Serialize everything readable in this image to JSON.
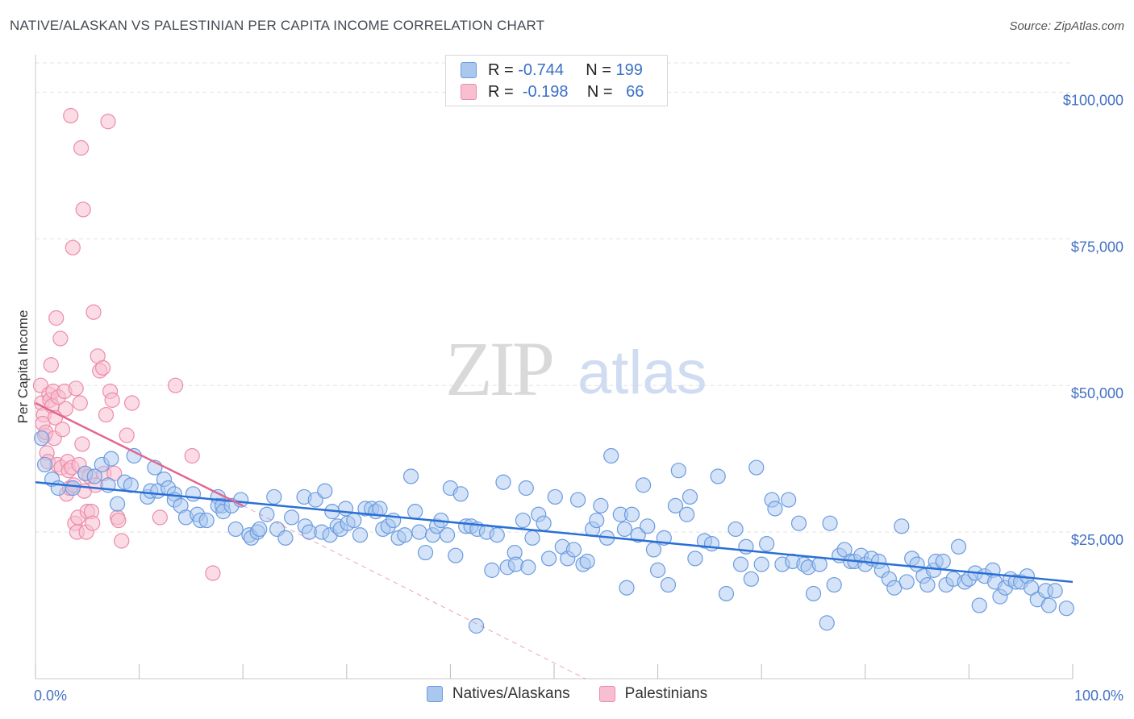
{
  "title": "NATIVE/ALASKAN VS PALESTINIAN PER CAPITA INCOME CORRELATION CHART",
  "source": "Source: ZipAtlas.com",
  "watermark": {
    "zip": "ZIP",
    "atlas": "atlas"
  },
  "legend": {
    "rows": [
      {
        "r_label": "R =",
        "r_value": "-0.744",
        "n_label": "N =",
        "n_value": "199"
      },
      {
        "r_label": "R =",
        "r_value": "-0.198",
        "n_label": "N =",
        "n_value": "66"
      }
    ]
  },
  "colors": {
    "blue_fill": "#aac7ef",
    "blue_stroke": "#6a9be0",
    "blue_line": "#2a6fd6",
    "pink_fill": "#f7bfd0",
    "pink_stroke": "#ec8bab",
    "pink_line": "#e26691",
    "grid": "#e3e3e3",
    "tick_label": "#4472c4"
  },
  "chart_data": {
    "type": "scatter",
    "title": "NATIVE/ALASKAN VS PALESTINIAN PER CAPITA INCOME CORRELATION CHART",
    "xlabel": "",
    "ylabel": "Per Capita Income",
    "xlim": [
      0,
      100
    ],
    "ylim": [
      0,
      105000
    ],
    "x_tick_labels": [
      "0.0%",
      "100.0%"
    ],
    "y_ticks": [
      25000,
      50000,
      75000,
      100000
    ],
    "y_tick_labels": [
      "$25,000",
      "$50,000",
      "$75,000",
      "$100,000"
    ],
    "grid": true,
    "legend_position": "bottom",
    "series": [
      {
        "name": "Natives/Alaskans",
        "color": "#aac7ef",
        "r": -0.744,
        "n": 199,
        "trend": {
          "x": [
            0,
            100
          ],
          "y": [
            33500,
            16500
          ]
        },
        "points": [
          [
            0.6,
            41000
          ],
          [
            0.9,
            36500
          ],
          [
            1.6,
            34000
          ],
          [
            2.2,
            32500
          ],
          [
            3.6,
            32500
          ],
          [
            4.8,
            35000
          ],
          [
            6.4,
            36500
          ],
          [
            5.7,
            34500
          ],
          [
            7.0,
            33000
          ],
          [
            7.3,
            37500
          ],
          [
            7.9,
            29800
          ],
          [
            8.6,
            33500
          ],
          [
            9.2,
            33000
          ],
          [
            9.5,
            38000
          ],
          [
            10.8,
            31000
          ],
          [
            11.1,
            32000
          ],
          [
            11.5,
            36000
          ],
          [
            11.8,
            32000
          ],
          [
            12.4,
            34000
          ],
          [
            12.8,
            32500
          ],
          [
            13.4,
            31500
          ],
          [
            13.4,
            30500
          ],
          [
            14.0,
            29500
          ],
          [
            14.5,
            27500
          ],
          [
            15.2,
            31500
          ],
          [
            15.6,
            28000
          ],
          [
            15.9,
            27000
          ],
          [
            16.5,
            27000
          ],
          [
            17.6,
            31000
          ],
          [
            17.6,
            29500
          ],
          [
            18.0,
            29500
          ],
          [
            18.1,
            28500
          ],
          [
            18.9,
            29500
          ],
          [
            19.3,
            25500
          ],
          [
            19.8,
            30500
          ],
          [
            20.6,
            24500
          ],
          [
            20.8,
            24000
          ],
          [
            21.4,
            25000
          ],
          [
            21.6,
            25500
          ],
          [
            22.3,
            28000
          ],
          [
            23.0,
            31000
          ],
          [
            23.3,
            25500
          ],
          [
            24.1,
            24000
          ],
          [
            24.7,
            27500
          ],
          [
            25.9,
            31000
          ],
          [
            26.0,
            26000
          ],
          [
            26.4,
            25000
          ],
          [
            27.0,
            30500
          ],
          [
            27.6,
            25000
          ],
          [
            27.9,
            32000
          ],
          [
            28.4,
            24500
          ],
          [
            28.6,
            28500
          ],
          [
            29.1,
            26000
          ],
          [
            29.4,
            25500
          ],
          [
            29.9,
            29000
          ],
          [
            30.1,
            26500
          ],
          [
            30.7,
            27000
          ],
          [
            31.3,
            24500
          ],
          [
            31.8,
            29000
          ],
          [
            32.4,
            29000
          ],
          [
            32.8,
            28500
          ],
          [
            33.2,
            29000
          ],
          [
            33.5,
            25500
          ],
          [
            34.0,
            26000
          ],
          [
            34.5,
            27000
          ],
          [
            35.0,
            24000
          ],
          [
            35.6,
            24500
          ],
          [
            36.2,
            34500
          ],
          [
            36.6,
            28500
          ],
          [
            37.0,
            25000
          ],
          [
            37.6,
            21500
          ],
          [
            38.3,
            24500
          ],
          [
            38.7,
            26000
          ],
          [
            39.1,
            27000
          ],
          [
            39.7,
            24500
          ],
          [
            40.0,
            32500
          ],
          [
            40.5,
            21000
          ],
          [
            41.0,
            31500
          ],
          [
            41.5,
            26000
          ],
          [
            42.0,
            26000
          ],
          [
            42.5,
            9000
          ],
          [
            42.6,
            25500
          ],
          [
            43.5,
            25000
          ],
          [
            44.0,
            18500
          ],
          [
            44.5,
            24500
          ],
          [
            45.1,
            33500
          ],
          [
            45.5,
            19000
          ],
          [
            46.2,
            21500
          ],
          [
            46.3,
            19500
          ],
          [
            47.0,
            27000
          ],
          [
            47.3,
            32500
          ],
          [
            47.5,
            19000
          ],
          [
            47.9,
            24000
          ],
          [
            48.5,
            28000
          ],
          [
            49.0,
            26500
          ],
          [
            49.5,
            20500
          ],
          [
            50.1,
            31000
          ],
          [
            50.8,
            22500
          ],
          [
            51.3,
            20500
          ],
          [
            51.9,
            22000
          ],
          [
            52.3,
            30500
          ],
          [
            52.8,
            19500
          ],
          [
            53.2,
            20000
          ],
          [
            53.7,
            25500
          ],
          [
            54.1,
            27000
          ],
          [
            54.5,
            29500
          ],
          [
            55.1,
            24000
          ],
          [
            55.5,
            38000
          ],
          [
            56.4,
            28000
          ],
          [
            56.8,
            25500
          ],
          [
            57.0,
            15500
          ],
          [
            57.5,
            28000
          ],
          [
            58.1,
            24500
          ],
          [
            58.6,
            33000
          ],
          [
            59.0,
            26000
          ],
          [
            59.6,
            22000
          ],
          [
            60.0,
            18500
          ],
          [
            60.6,
            24000
          ],
          [
            61.0,
            16000
          ],
          [
            61.7,
            29500
          ],
          [
            62.0,
            35500
          ],
          [
            62.8,
            28000
          ],
          [
            63.1,
            31000
          ],
          [
            63.6,
            20500
          ],
          [
            64.5,
            23500
          ],
          [
            65.2,
            23000
          ],
          [
            65.8,
            34500
          ],
          [
            66.6,
            14500
          ],
          [
            67.5,
            25500
          ],
          [
            68.0,
            19500
          ],
          [
            68.5,
            22500
          ],
          [
            69.0,
            17000
          ],
          [
            69.5,
            36000
          ],
          [
            70.0,
            19500
          ],
          [
            70.5,
            23000
          ],
          [
            71.0,
            30500
          ],
          [
            71.3,
            29000
          ],
          [
            72.0,
            19500
          ],
          [
            72.6,
            30500
          ],
          [
            73.0,
            20000
          ],
          [
            73.6,
            26500
          ],
          [
            74.1,
            19500
          ],
          [
            74.5,
            19000
          ],
          [
            75.0,
            14500
          ],
          [
            75.6,
            19500
          ],
          [
            76.3,
            9500
          ],
          [
            76.6,
            26500
          ],
          [
            77.0,
            16000
          ],
          [
            77.5,
            21000
          ],
          [
            78.0,
            22000
          ],
          [
            78.6,
            20000
          ],
          [
            79.0,
            20000
          ],
          [
            79.6,
            21000
          ],
          [
            80.0,
            19500
          ],
          [
            80.6,
            20500
          ],
          [
            81.3,
            20000
          ],
          [
            81.6,
            18500
          ],
          [
            82.3,
            17000
          ],
          [
            82.8,
            15500
          ],
          [
            83.5,
            26000
          ],
          [
            84.0,
            16500
          ],
          [
            84.5,
            20500
          ],
          [
            85.0,
            19500
          ],
          [
            85.6,
            17500
          ],
          [
            86.0,
            16000
          ],
          [
            86.6,
            18500
          ],
          [
            86.8,
            20000
          ],
          [
            87.5,
            20000
          ],
          [
            87.8,
            16000
          ],
          [
            88.5,
            17000
          ],
          [
            89.0,
            22500
          ],
          [
            89.6,
            16500
          ],
          [
            90.0,
            17000
          ],
          [
            90.6,
            18000
          ],
          [
            91.0,
            12500
          ],
          [
            91.5,
            17500
          ],
          [
            92.3,
            18500
          ],
          [
            92.5,
            16500
          ],
          [
            93.0,
            14000
          ],
          [
            93.5,
            15500
          ],
          [
            94.0,
            17000
          ],
          [
            94.5,
            16500
          ],
          [
            95.0,
            16500
          ],
          [
            95.6,
            17500
          ],
          [
            96.0,
            15500
          ],
          [
            96.6,
            13500
          ],
          [
            97.4,
            15000
          ],
          [
            97.7,
            12500
          ],
          [
            98.3,
            15000
          ],
          [
            99.4,
            12000
          ]
        ]
      },
      {
        "name": "Palestinians",
        "color": "#f7bfd0",
        "r": -0.198,
        "n": 66,
        "trend": {
          "x": [
            0,
            20
          ],
          "y": [
            47000,
            29500
          ]
        },
        "trend_extension": {
          "x": [
            20,
            53
          ],
          "y": [
            29500,
            0
          ]
        },
        "points": [
          [
            0.5,
            50000
          ],
          [
            0.6,
            47000
          ],
          [
            0.8,
            45000
          ],
          [
            0.7,
            43500
          ],
          [
            0.9,
            41500
          ],
          [
            1.0,
            42000
          ],
          [
            1.1,
            38500
          ],
          [
            1.2,
            37000
          ],
          [
            1.3,
            48500
          ],
          [
            1.4,
            47500
          ],
          [
            1.5,
            53500
          ],
          [
            1.6,
            46500
          ],
          [
            1.7,
            49000
          ],
          [
            1.8,
            41000
          ],
          [
            1.9,
            44500
          ],
          [
            2.0,
            61500
          ],
          [
            2.1,
            36500
          ],
          [
            2.2,
            48000
          ],
          [
            2.4,
            58000
          ],
          [
            2.5,
            36000
          ],
          [
            2.6,
            42500
          ],
          [
            2.8,
            49000
          ],
          [
            2.9,
            46000
          ],
          [
            3.0,
            31500
          ],
          [
            3.1,
            37000
          ],
          [
            3.2,
            35500
          ],
          [
            3.3,
            32500
          ],
          [
            3.4,
            96000
          ],
          [
            3.5,
            36000
          ],
          [
            3.6,
            73500
          ],
          [
            3.7,
            33000
          ],
          [
            3.8,
            26500
          ],
          [
            3.9,
            49500
          ],
          [
            4.0,
            25000
          ],
          [
            4.1,
            27500
          ],
          [
            4.2,
            36500
          ],
          [
            4.3,
            47000
          ],
          [
            4.4,
            90500
          ],
          [
            4.5,
            40000
          ],
          [
            4.6,
            80000
          ],
          [
            4.7,
            32000
          ],
          [
            4.8,
            35000
          ],
          [
            4.9,
            25000
          ],
          [
            5.0,
            28500
          ],
          [
            5.2,
            34500
          ],
          [
            5.4,
            28500
          ],
          [
            5.5,
            26500
          ],
          [
            5.6,
            62500
          ],
          [
            5.8,
            33000
          ],
          [
            6.0,
            55000
          ],
          [
            6.2,
            52500
          ],
          [
            6.5,
            53000
          ],
          [
            6.6,
            35000
          ],
          [
            6.8,
            45000
          ],
          [
            7.0,
            95000
          ],
          [
            7.2,
            49000
          ],
          [
            7.4,
            47500
          ],
          [
            7.6,
            35000
          ],
          [
            7.9,
            27500
          ],
          [
            8.0,
            27000
          ],
          [
            8.3,
            23500
          ],
          [
            8.8,
            41500
          ],
          [
            9.3,
            47000
          ],
          [
            12.0,
            27500
          ],
          [
            13.5,
            50000
          ],
          [
            15.1,
            38000
          ],
          [
            17.1,
            18000
          ]
        ]
      }
    ]
  }
}
